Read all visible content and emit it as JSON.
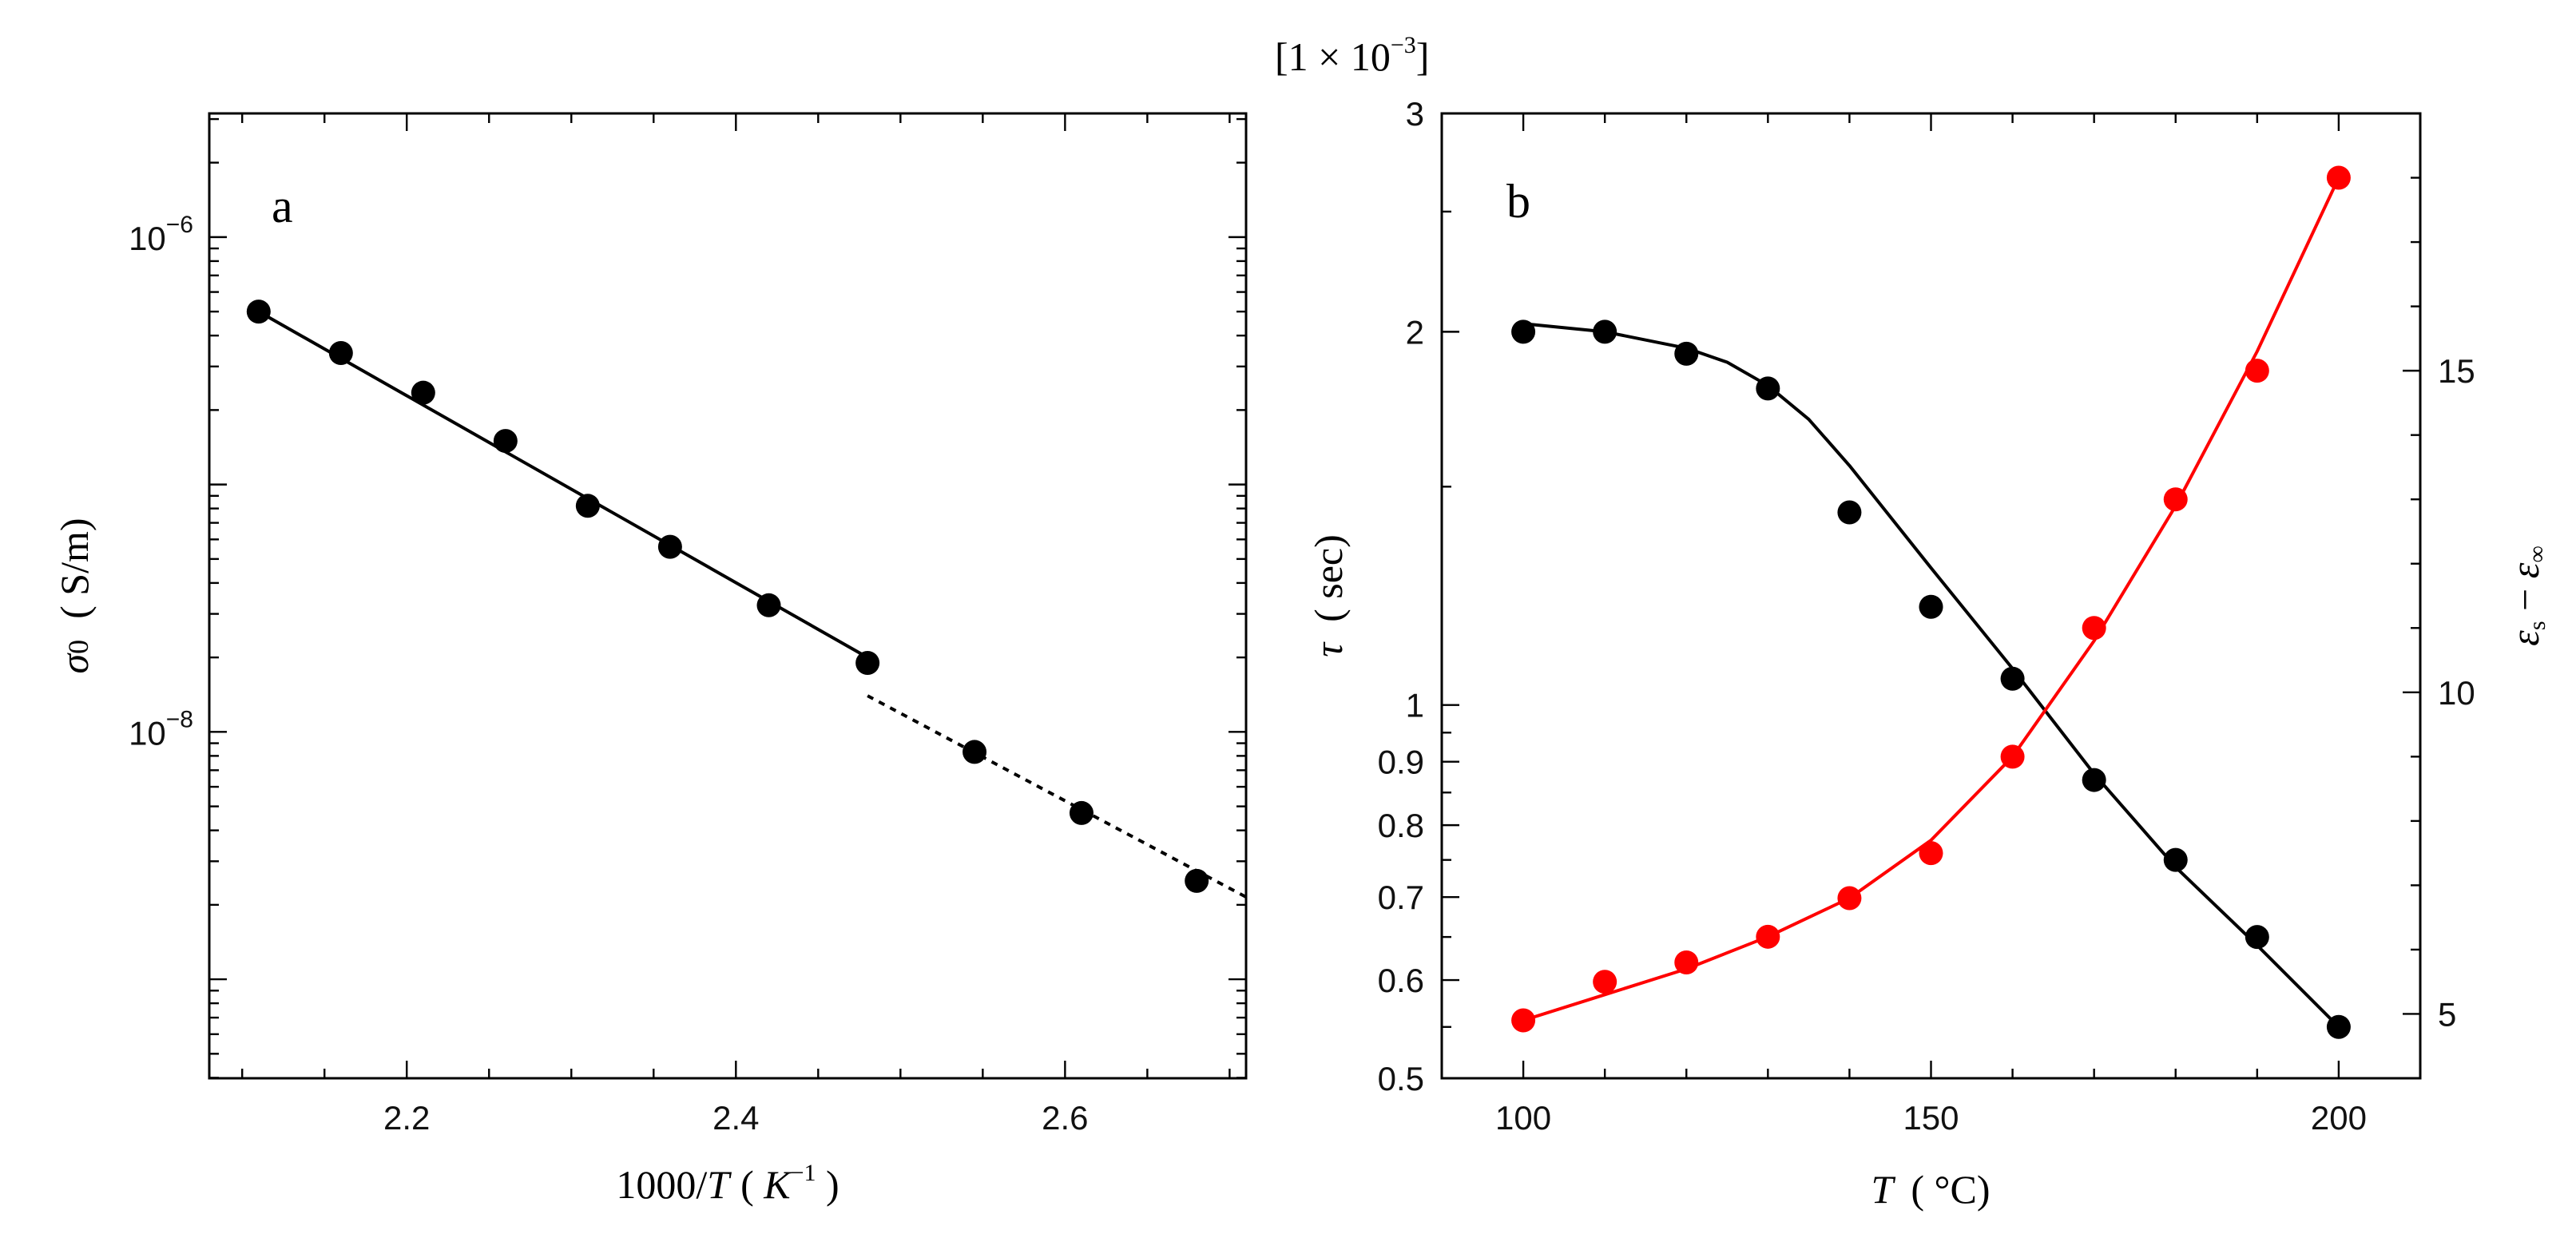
{
  "chart_data": [
    {
      "type": "scatter",
      "panel_label": "a",
      "title": "",
      "xlabel": {
        "prefix": "1000/",
        "var": "T",
        "open": "( ",
        "unit": "K",
        "exp": "−1",
        "close": " )"
      },
      "ylabel": {
        "symbol": "σ",
        "sub": "0",
        "unit": "( S/m)"
      },
      "yscale": "log",
      "xlim": [
        2.08,
        2.71
      ],
      "ylim_exp": [
        -9.4,
        -5.5
      ],
      "xticks": [
        2.2,
        2.4,
        2.6
      ],
      "xtick_labels": [
        "2.2",
        "2.4",
        "2.6"
      ],
      "xtick_minor_step": 0.05,
      "ytick_major_exp": [
        -6,
        -8
      ],
      "ytick_labels": [
        {
          "base": "10",
          "exp": "−6"
        },
        {
          "base": "10",
          "exp": "−8"
        }
      ],
      "x": [
        2.11,
        2.16,
        2.21,
        2.26,
        2.31,
        2.36,
        2.42,
        2.48,
        2.545,
        2.61,
        2.68
      ],
      "y": [
        5e-07,
        3.4e-07,
        2.35e-07,
        1.5e-07,
        8.2e-08,
        5.6e-08,
        3.25e-08,
        1.9e-08,
        8.3e-09,
        4.7e-09,
        2.5e-09
      ],
      "fit_solid": {
        "x": [
          2.11,
          2.48
        ],
        "y": [
          5e-07,
          2e-08
        ]
      },
      "fit_dotted": {
        "x": [
          2.48,
          2.71
        ],
        "y": [
          1.4e-08,
          2.15e-09
        ]
      }
    },
    {
      "type": "scatter",
      "panel_label": "b",
      "title": "",
      "multiplier_label": {
        "open": "[1 × 10",
        "exp": "−3",
        "close": "]"
      },
      "xlabel": {
        "var": "T",
        "unit": "( °C)"
      },
      "ylabel": {
        "var": "τ",
        "unit": "( sec)"
      },
      "y2label": {
        "text": "ε",
        "sub_s": "s",
        "minus": " − ",
        "text2": "ε",
        "sub_inf": "∞"
      },
      "xlim": [
        90,
        210
      ],
      "ylim_left": [
        0.5,
        3
      ],
      "yscale_left": "log",
      "ylim_right": [
        4,
        19
      ],
      "xticks": [
        100,
        150,
        200
      ],
      "xtick_labels": [
        "100",
        "150",
        "200"
      ],
      "yticks_left": [
        0.5,
        0.6,
        0.7,
        0.8,
        0.9,
        1,
        2,
        3
      ],
      "ytick_left_labels": [
        "0.5",
        "0.6",
        "0.7",
        "0.8",
        "0.9",
        "1",
        "2",
        "3"
      ],
      "yticks_right": [
        5,
        10,
        15
      ],
      "ytick_right_labels": [
        "5",
        "10",
        "15"
      ],
      "series": [
        {
          "name": "tau",
          "axis": "left",
          "color": "#000000",
          "x": [
            100,
            110,
            120,
            130,
            140,
            150,
            160,
            170,
            180,
            190,
            200
          ],
          "y": [
            2.0,
            2.0,
            1.92,
            1.8,
            1.43,
            1.2,
            1.05,
            0.87,
            0.75,
            0.65,
            0.55
          ],
          "fit_x": [
            100,
            110,
            120,
            125,
            130,
            135,
            140,
            150,
            160,
            170,
            180,
            190,
            200
          ],
          "fit_y": [
            2.03,
            2.0,
            1.94,
            1.89,
            1.81,
            1.7,
            1.56,
            1.29,
            1.07,
            0.88,
            0.74,
            0.64,
            0.55
          ]
        },
        {
          "name": "eps_s_minus_eps_inf",
          "axis": "right",
          "color": "#ff0000",
          "x": [
            100,
            110,
            120,
            130,
            140,
            150,
            160,
            170,
            180,
            190,
            200
          ],
          "y": [
            4.9,
            5.5,
            5.8,
            6.2,
            6.8,
            7.5,
            9.0,
            11.0,
            13.0,
            15.0,
            18.0
          ],
          "fit_x": [
            100,
            110,
            120,
            130,
            140,
            150,
            160,
            170,
            180,
            190,
            200
          ],
          "fit_y": [
            4.9,
            5.3,
            5.7,
            6.2,
            6.8,
            7.7,
            9.0,
            10.8,
            12.9,
            15.3,
            18.0
          ]
        }
      ]
    }
  ]
}
